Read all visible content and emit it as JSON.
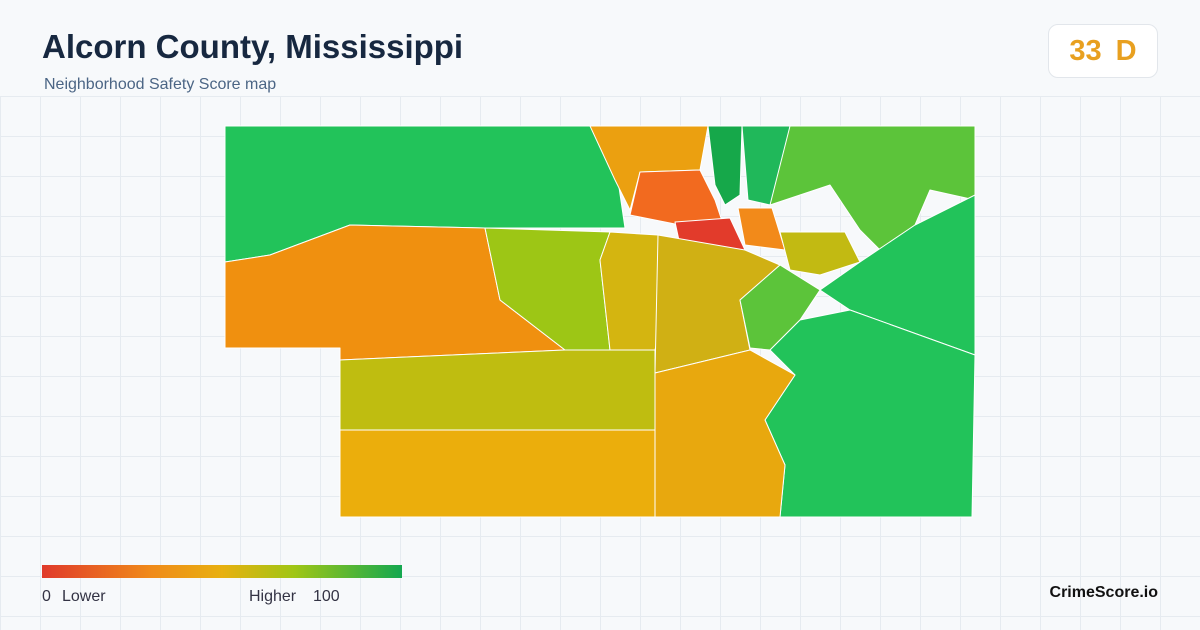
{
  "header": {
    "title": "Alcorn County, Mississippi",
    "subtitle": "Neighborhood Safety Score map"
  },
  "score": {
    "value": 33,
    "grade": "D"
  },
  "legend": {
    "min": 0,
    "min_label": "Lower",
    "max_label": "Higher",
    "max": 100
  },
  "brand": "CrimeScore.io"
}
